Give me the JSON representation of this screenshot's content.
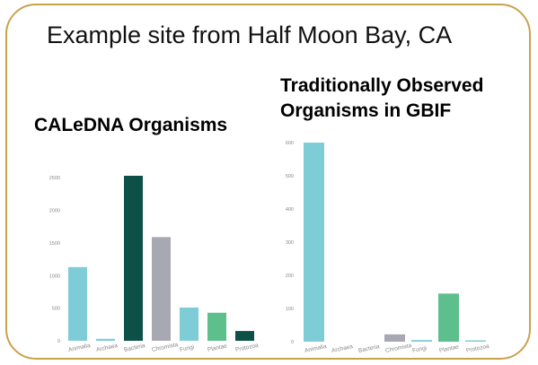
{
  "slide": {
    "title": "Example site from Half Moon Bay, CA"
  },
  "chart_data": [
    {
      "type": "bar",
      "title": "CALeDNA Organisms",
      "categories": [
        "Animalia",
        "Archaea",
        "Bacteria",
        "Chromista",
        "Fungi",
        "Plantae",
        "Protozoa"
      ],
      "values": [
        1130,
        30,
        2530,
        1590,
        510,
        430,
        150
      ],
      "colors": [
        "#7ecdd6",
        "#7ecdd6",
        "#0c5048",
        "#a8a8b2",
        "#7ecdd6",
        "#5cbf8c",
        "#0c5048"
      ],
      "yticks": [
        "0",
        "500",
        "1000",
        "1500",
        "2000",
        "2500"
      ],
      "ylim": [
        0,
        2750
      ],
      "grid": false,
      "xlabel": "",
      "ylabel": ""
    },
    {
      "type": "bar",
      "title": "Traditionally Observed Organisms in GBIF",
      "title_lines": [
        "Traditionally Observed",
        "Organisms in GBIF"
      ],
      "categories": [
        "Animalia",
        "Archaea",
        "Bacteria",
        "Chromista",
        "Fungi",
        "Plantae",
        "Protozoa"
      ],
      "values": [
        600,
        0,
        0,
        22,
        5,
        145,
        2
      ],
      "colors": [
        "#7ecdd6",
        "#7ecdd6",
        "#0c5048",
        "#a8a8b2",
        "#7ecdd6",
        "#5cbf8c",
        "#7ecdd6"
      ],
      "yticks": [
        "0",
        "100",
        "200",
        "300",
        "400",
        "500",
        "600"
      ],
      "ylim": [
        0,
        600
      ],
      "grid": false,
      "xlabel": "",
      "ylabel": ""
    }
  ]
}
